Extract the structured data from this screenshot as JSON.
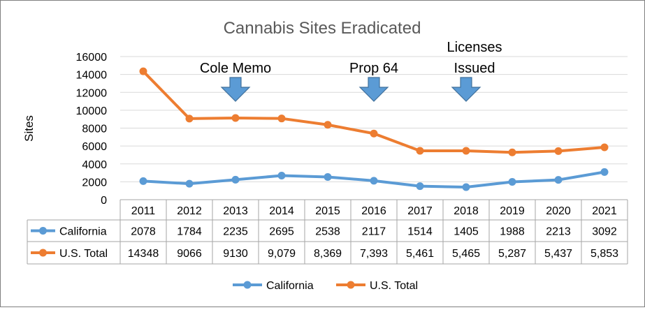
{
  "chart_data": {
    "type": "line",
    "title": "Cannabis Sites Eradicated",
    "ylabel": "Sites",
    "xlabel": "",
    "ylim": [
      0,
      16000
    ],
    "yticks": [
      0,
      2000,
      4000,
      6000,
      8000,
      10000,
      12000,
      14000,
      16000
    ],
    "grid": true,
    "legend_position": "bottom",
    "categories": [
      "2011",
      "2012",
      "2013",
      "2014",
      "2015",
      "2016",
      "2017",
      "2018",
      "2019",
      "2020",
      "2021"
    ],
    "series": [
      {
        "name": "California",
        "color": "#5b9bd5",
        "values": [
          2078,
          1784,
          2235,
          2695,
          2538,
          2117,
          1514,
          1405,
          1988,
          2213,
          3092
        ],
        "table_labels": [
          "2078",
          "1784",
          "2235",
          "2695",
          "2538",
          "2117",
          "1514",
          "1405",
          "1988",
          "2213",
          "3092"
        ]
      },
      {
        "name": "U.S. Total",
        "color": "#ed7d31",
        "values": [
          14348,
          9066,
          9130,
          9079,
          8369,
          7393,
          5461,
          5465,
          5287,
          5437,
          5853
        ],
        "table_labels": [
          "14348",
          "9066",
          "9130",
          "9,079",
          "8,369",
          "7,393",
          "5,461",
          "5,465",
          "5,287",
          "5,437",
          "5,853"
        ]
      }
    ],
    "annotations": [
      {
        "category": "2013",
        "lines": [
          "Cole Memo"
        ],
        "arrow_color": "#5b9bd5"
      },
      {
        "category": "2016",
        "lines": [
          "Prop 64"
        ],
        "arrow_color": "#5b9bd5"
      },
      {
        "category": "2018",
        "lines": [
          "Licenses",
          "Issued"
        ],
        "arrow_color": "#5b9bd5"
      }
    ]
  }
}
